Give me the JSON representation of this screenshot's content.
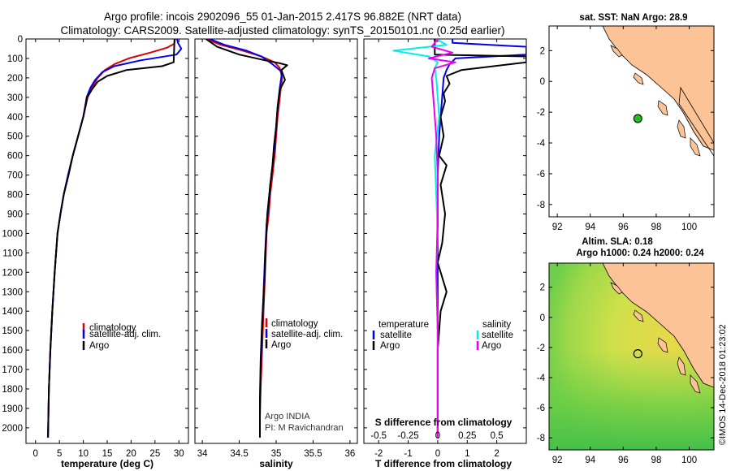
{
  "title_line1": "Argo profile: incois 2902096_55 01-Jan-2015 2.417S 96.882E (NRT data)",
  "title_line2": "Climatology: CARS2009. Satellite-adjusted climatology: synTS_20150101.nc (0.25d earlier)",
  "colors": {
    "climatology": "#dd0000",
    "satellite": "#0000ee",
    "argo": "#000000",
    "salinity_sat": "#00eeee",
    "salinity_argo": "#ee00ee",
    "land": "#fbc396",
    "argo_marker": "#22bb22"
  },
  "chart_data": [
    {
      "type": "line",
      "id": "temperature_panel",
      "xlabel": "temperature (deg C)",
      "ylabel": "",
      "xlim": [
        -2,
        32
      ],
      "ylim": [
        2080,
        0
      ],
      "xticks": [
        0,
        5,
        10,
        15,
        20,
        25,
        30
      ],
      "xtick_labels": [
        "0",
        "5",
        "10",
        "15",
        "20",
        "25",
        "30"
      ],
      "yticks": [
        0,
        100,
        200,
        300,
        400,
        500,
        600,
        700,
        800,
        900,
        1000,
        1100,
        1200,
        1300,
        1400,
        1500,
        1600,
        1700,
        1800,
        1900,
        2000
      ],
      "ytick_labels": [
        "0",
        "100",
        "200",
        "300",
        "400",
        "500",
        "600",
        "700",
        "800",
        "900",
        "1000",
        "1100",
        "1200",
        "1300",
        "1400",
        "1500",
        "1600",
        "1700",
        "1800",
        "1900",
        "2000"
      ],
      "legend": {
        "position": "bottom-right",
        "entries": [
          "climatology",
          "satellite-adj. clim.",
          "Argo"
        ]
      },
      "series": [
        {
          "name": "climatology",
          "color": "#dd0000",
          "x": [
            29.2,
            29.0,
            27.5,
            24.0,
            19.5,
            16.5,
            14.5,
            13.0,
            11.8,
            10.9,
            10.0,
            8.9,
            7.8,
            6.8,
            5.9,
            5.2,
            4.6,
            4.0,
            3.5,
            3.1,
            2.8,
            2.6
          ],
          "y": [
            0,
            25,
            45,
            70,
            100,
            130,
            160,
            200,
            250,
            300,
            400,
            500,
            600,
            700,
            800,
            900,
            1000,
            1200,
            1400,
            1600,
            1800,
            2050
          ]
        },
        {
          "name": "satellite-adj. clim.",
          "color": "#0000ee",
          "x": [
            29.6,
            29.8,
            30.5,
            29.5,
            22.0,
            16.5,
            14.0,
            12.5,
            11.5,
            10.7,
            10.0,
            8.9,
            7.8,
            6.8,
            5.9,
            5.2,
            4.6,
            4.0,
            3.5,
            3.1,
            2.8,
            2.6
          ],
          "y": [
            0,
            20,
            50,
            80,
            110,
            140,
            170,
            210,
            250,
            300,
            400,
            500,
            600,
            700,
            800,
            900,
            1000,
            1200,
            1400,
            1600,
            1800,
            2050
          ]
        },
        {
          "name": "Argo",
          "color": "#000000",
          "x": [
            29.1,
            29.0,
            28.9,
            26.5,
            19.0,
            15.0,
            13.0,
            11.8,
            10.8,
            10.0,
            8.9,
            7.8,
            6.9,
            5.9,
            5.2,
            4.6,
            4.0,
            3.5,
            3.1,
            2.8,
            2.6
          ],
          "y": [
            0,
            50,
            120,
            140,
            160,
            190,
            220,
            260,
            300,
            400,
            500,
            600,
            700,
            800,
            900,
            1000,
            1200,
            1400,
            1600,
            1800,
            2050
          ]
        }
      ]
    },
    {
      "type": "line",
      "id": "salinity_panel",
      "xlabel": "salinity",
      "xlim": [
        33.9,
        36.1
      ],
      "ylim": [
        2080,
        0
      ],
      "xticks": [
        34,
        34.5,
        35,
        35.5,
        36
      ],
      "xtick_labels": [
        "34",
        "34.5",
        "35",
        "35.5",
        "36"
      ],
      "legend": {
        "position": "bottom-right",
        "entries": [
          "climatology",
          "satellite-adj. clim.",
          "Argo"
        ]
      },
      "annotation": [
        "Argo INDIA",
        "PI: M Ravichandran"
      ],
      "series": [
        {
          "name": "climatology",
          "color": "#dd0000",
          "x": [
            34.05,
            34.25,
            34.55,
            34.8,
            34.98,
            35.05,
            35.08,
            35.05,
            35.02,
            35.0,
            34.98,
            34.95,
            34.92,
            34.9,
            34.87,
            34.85,
            34.83,
            34.81,
            34.79,
            34.78,
            34.78
          ],
          "y": [
            0,
            30,
            60,
            90,
            120,
            150,
            200,
            300,
            400,
            500,
            600,
            700,
            800,
            900,
            1000,
            1200,
            1400,
            1600,
            1800,
            1950,
            2050
          ]
        },
        {
          "name": "satellite-adj. clim.",
          "color": "#0000ee",
          "x": [
            34.1,
            34.3,
            34.6,
            34.8,
            34.95,
            35.08,
            35.05,
            35.02,
            35.0,
            34.98,
            34.95,
            34.92,
            34.9,
            34.87,
            34.85,
            34.83,
            34.81,
            34.79,
            34.78,
            34.78
          ],
          "y": [
            0,
            30,
            60,
            90,
            130,
            170,
            250,
            350,
            450,
            550,
            650,
            750,
            850,
            950,
            1100,
            1300,
            1500,
            1700,
            1900,
            2050
          ]
        },
        {
          "name": "Argo",
          "color": "#000000",
          "x": [
            34.05,
            34.2,
            34.5,
            34.85,
            35.05,
            35.15,
            35.07,
            35.12,
            35.05,
            35.02,
            35.0,
            34.97,
            34.95,
            34.92,
            34.88,
            34.86,
            34.84,
            34.81,
            34.79,
            34.78,
            34.78
          ],
          "y": [
            0,
            40,
            80,
            110,
            125,
            135,
            160,
            210,
            260,
            350,
            450,
            550,
            650,
            750,
            900,
            1050,
            1250,
            1450,
            1650,
            1850,
            2050
          ]
        }
      ]
    },
    {
      "type": "line",
      "id": "difference_panel",
      "xlabel": "T difference from climatology",
      "xlim": [
        -2.5,
        3.0
      ],
      "ylim": [
        2080,
        0
      ],
      "xticks": [
        -2,
        -1,
        0,
        1,
        2
      ],
      "xtick_labels": [
        "-2",
        "-1",
        "0",
        "1",
        "2"
      ],
      "top_axis": {
        "label": "S difference from climatology",
        "tick_labels": [
          "-0.5",
          "-0.25",
          "0",
          "0.25",
          "0.5"
        ]
      },
      "legend": {
        "position": "bottom",
        "temperature_title": "temperature",
        "salinity_title": "salinity",
        "entries": [
          "satellite",
          "Argo"
        ]
      },
      "series": [
        {
          "name": "temperature satellite",
          "color": "#0000ee",
          "x": [
            0.5,
            0.5,
            3.0,
            3.0,
            0.6,
            0.4,
            0.3,
            0.2,
            0.15,
            0.1,
            0.05,
            0.0,
            0.0,
            0.0,
            0.0,
            0.0,
            0.0,
            0.0
          ],
          "y": [
            0,
            20,
            40,
            80,
            100,
            130,
            160,
            200,
            300,
            400,
            500,
            700,
            900,
            1100,
            1300,
            1500,
            1800,
            2050
          ]
        },
        {
          "name": "temperature Argo",
          "color": "#000000",
          "x": [
            -0.1,
            -0.1,
            3.0,
            3.0,
            0.8,
            0.3,
            0.4,
            0.2,
            0.25,
            0.1,
            0.2,
            0.05,
            0.3,
            0.1,
            0.25,
            0.15,
            0.0,
            0.3,
            0.1,
            0.0,
            0.0,
            0.0
          ],
          "y": [
            0,
            80,
            90,
            120,
            160,
            190,
            230,
            280,
            320,
            400,
            500,
            600,
            650,
            750,
            900,
            1050,
            1150,
            1300,
            1400,
            1600,
            1800,
            2050
          ]
        },
        {
          "name": "salinity satellite",
          "color": "#00eeee",
          "x": [
            -0.05,
            0.3,
            -1.5,
            -0.3,
            0.0,
            -0.1,
            -0.05,
            0.05,
            -0.1,
            -0.05,
            0.0,
            -0.05,
            0.0,
            0.0,
            0.0
          ],
          "y": [
            0,
            30,
            60,
            90,
            120,
            150,
            200,
            400,
            600,
            800,
            1000,
            1200,
            1500,
            1800,
            2050
          ]
        },
        {
          "name": "salinity Argo",
          "color": "#ee00ee",
          "x": [
            0.0,
            -0.2,
            0.5,
            -0.3,
            0.6,
            -0.1,
            -0.2,
            -0.15,
            -0.1,
            -0.05,
            0.0,
            0.0,
            -0.05,
            0.0,
            0.0
          ],
          "y": [
            0,
            40,
            70,
            100,
            120,
            150,
            200,
            300,
            400,
            500,
            700,
            900,
            1200,
            1500,
            2050
          ]
        }
      ]
    },
    {
      "type": "map",
      "id": "sst_map",
      "title": "sat. SST: NaN Argo: 28.9",
      "xlim": [
        91.5,
        101.5
      ],
      "ylim": [
        -8.8,
        3.6
      ],
      "xticks": [
        92,
        94,
        96,
        98,
        100
      ],
      "xtick_labels": [
        "92",
        "94",
        "96",
        "98",
        "100"
      ],
      "yticks": [
        2,
        0,
        -2,
        -4,
        -6,
        -8
      ],
      "ytick_labels": [
        "2",
        "0",
        "-2",
        "-4",
        "-6",
        "-8"
      ],
      "argo_location": {
        "lon": 96.882,
        "lat": -2.417
      }
    },
    {
      "type": "map",
      "id": "sla_map",
      "title_line1": "Altim. SLA: 0.18",
      "title_line2": "Argo h1000: 0.24 h2000: 0.24",
      "xlim": [
        91.5,
        101.5
      ],
      "ylim": [
        -8.8,
        3.6
      ],
      "xticks": [
        92,
        94,
        96,
        98,
        100
      ],
      "xtick_labels": [
        "92",
        "94",
        "96",
        "98",
        "100"
      ],
      "yticks": [
        2,
        0,
        -2,
        -4,
        -6,
        -8
      ],
      "ytick_labels": [
        "2",
        "0",
        "-2",
        "-4",
        "-6",
        "-8"
      ],
      "argo_location": {
        "lon": 96.882,
        "lat": -2.417
      },
      "credit": "©IMOS 14-Dec-2018 01:23:02"
    }
  ]
}
